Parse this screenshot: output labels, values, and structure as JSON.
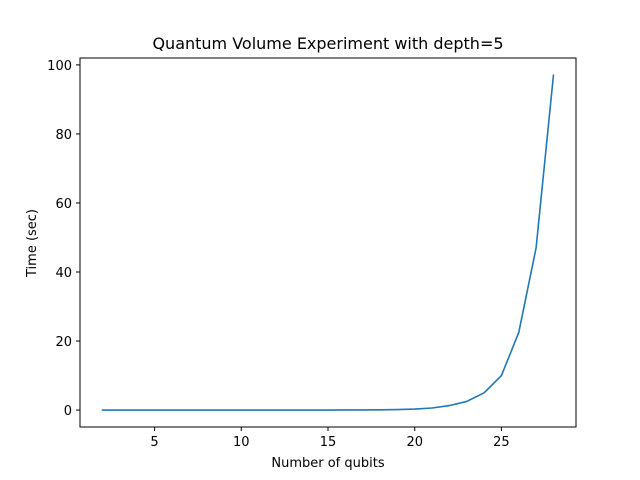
{
  "chart_data": {
    "type": "line",
    "title": "Quantum Volume Experiment with depth=5",
    "xlabel": "Number of qubits",
    "ylabel": "Time (sec)",
    "xlim": [
      0.7,
      29.3
    ],
    "ylim": [
      -4.9,
      102.0
    ],
    "xticks": [
      5,
      10,
      15,
      20,
      25
    ],
    "yticks": [
      0,
      20,
      40,
      60,
      80,
      100
    ],
    "grid": false,
    "line_color": "#1f77b4",
    "series": [
      {
        "x": [
          2,
          3,
          4,
          5,
          6,
          7,
          8,
          9,
          10,
          11,
          12,
          13,
          14,
          15,
          16,
          17,
          18,
          19,
          20,
          21,
          22,
          23,
          24,
          25,
          26,
          27,
          28
        ],
        "y": [
          0.01,
          0.01,
          0.01,
          0.01,
          0.01,
          0.01,
          0.01,
          0.01,
          0.01,
          0.01,
          0.01,
          0.01,
          0.01,
          0.02,
          0.03,
          0.05,
          0.08,
          0.15,
          0.3,
          0.6,
          1.3,
          2.5,
          5.0,
          10.0,
          22.5,
          47.0,
          97.0
        ]
      }
    ]
  }
}
